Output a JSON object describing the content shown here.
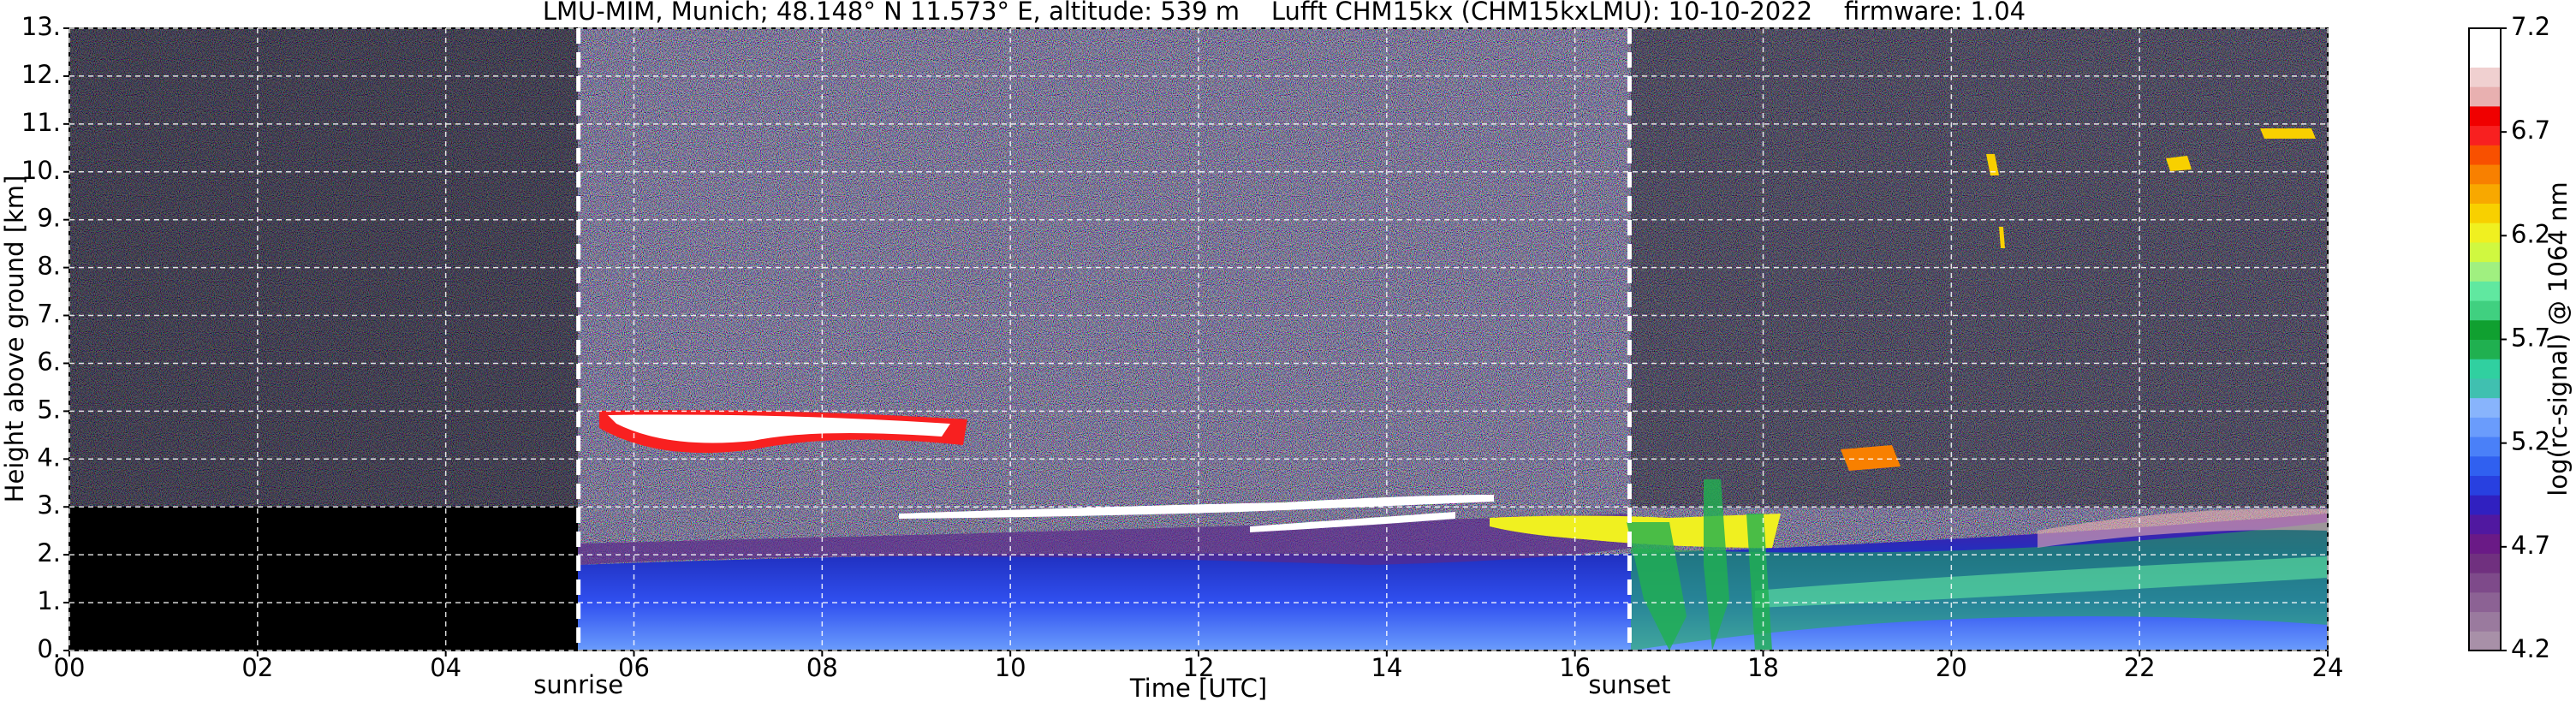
{
  "chart_data": {
    "type": "heatmap",
    "title": "LMU-MIM, Munich; 48.148° N 11.573° E, altitude: 539 m    Lufft CHM15kx (CHM15kxLMU): 10-10-2022    firmware: 1.04",
    "xlabel": "Time [UTC]",
    "ylabel": "Height above ground [km]",
    "xlim": [
      0,
      24
    ],
    "xticks": [
      {
        "value": 0,
        "label": "00"
      },
      {
        "value": 2,
        "label": "02"
      },
      {
        "value": 4,
        "label": "04"
      },
      {
        "value": 6,
        "label": "06"
      },
      {
        "value": 8,
        "label": "08"
      },
      10,
      12,
      14,
      16,
      18,
      20,
      22,
      24
    ],
    "ylim": [
      0,
      13
    ],
    "yticks": [
      {
        "value": 0,
        "label": "0."
      },
      {
        "value": 1,
        "label": "1."
      },
      {
        "value": 2,
        "label": "2."
      },
      {
        "value": 3,
        "label": "3."
      },
      {
        "value": 4,
        "label": "4."
      },
      {
        "value": 5,
        "label": "5."
      },
      {
        "value": 6,
        "label": "6."
      },
      {
        "value": 7,
        "label": "7."
      },
      {
        "value": 8,
        "label": "8."
      },
      {
        "value": 9,
        "label": "9."
      },
      {
        "value": 10,
        "label": "10."
      },
      {
        "value": 11,
        "label": "11."
      },
      {
        "value": 12,
        "label": "12."
      },
      {
        "value": 13,
        "label": "13."
      }
    ],
    "grid": true,
    "annotations": [
      {
        "label": "sunrise",
        "x": 5.41
      },
      {
        "label": "sunset",
        "x": 16.58
      }
    ],
    "colorbar": {
      "label": "log(rc-signal) @ 1064 nm",
      "lim": [
        4.2,
        7.2
      ],
      "ticks": [
        4.2,
        4.7,
        5.2,
        5.7,
        6.2,
        6.7,
        7.2
      ],
      "colors": [
        "#a890a8",
        "#9a7a9e",
        "#8c6294",
        "#7e4a8a",
        "#70307f",
        "#6a1a86",
        "#5018a0",
        "#3020c0",
        "#2840e0",
        "#3060f0",
        "#4a80f8",
        "#6a9cfc",
        "#88b4fc",
        "#40c0b0",
        "#30d0a0",
        "#20b050",
        "#10a030",
        "#40d080",
        "#60e8a0",
        "#a0f080",
        "#d0f840",
        "#f0f020",
        "#f8d000",
        "#f8a800",
        "#f88000",
        "#f85000",
        "#f82020",
        "#f00000",
        "#e8b0b0",
        "#f0d0d0",
        "#ffffff",
        "#ffffff"
      ]
    }
  }
}
